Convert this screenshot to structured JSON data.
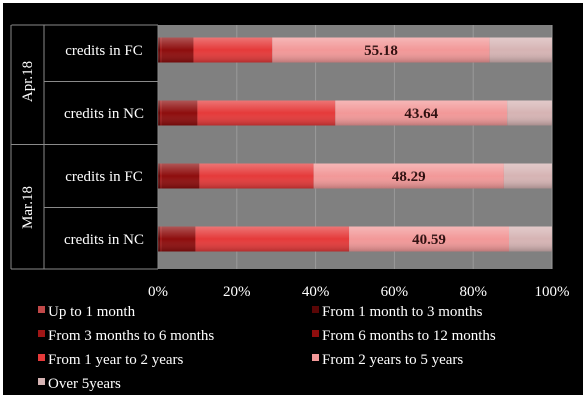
{
  "chart_data": {
    "type": "bar",
    "orientation": "horizontal",
    "stacked": "percent",
    "title": "",
    "xlabel": "",
    "ylabel": "",
    "xlim": [
      0,
      100
    ],
    "x_ticks": [
      "0%",
      "20%",
      "40%",
      "60%",
      "80%",
      "100%"
    ],
    "grid": true,
    "legend_position": "bottom",
    "groups": [
      {
        "label": "Apr.18",
        "categories": [
          "credits in FC",
          "credits in NC"
        ]
      },
      {
        "label": "Mar.18",
        "categories": [
          "credits in FC",
          "credits in NC"
        ]
      }
    ],
    "rows": [
      {
        "group": "Apr.18",
        "category": "credits in FC",
        "data_label": "55.18"
      },
      {
        "group": "Apr.18",
        "category": "credits in NC",
        "data_label": "43.64"
      },
      {
        "group": "Mar.18",
        "category": "credits in FC",
        "data_label": "48.29"
      },
      {
        "group": "Mar.18",
        "category": "credits in NC",
        "data_label": "40.59"
      }
    ],
    "label_series_index": 6,
    "series": [
      {
        "name": "Up to 1 month",
        "values": [
          0.2,
          0.2,
          0.2,
          0.2
        ]
      },
      {
        "name": "From 1 month to 3 months",
        "values": [
          0.3,
          0.3,
          0.3,
          0.3
        ]
      },
      {
        "name": "From 3 months to 6 months",
        "values": [
          0.5,
          0.5,
          0.5,
          0.5
        ]
      },
      {
        "name": "From 6 months to 12 months",
        "values": [
          8.0,
          9.0,
          9.5,
          8.5
        ]
      },
      {
        "name": "From 1 year to 2 years",
        "values": [
          20.0,
          35.0,
          29.0,
          39.0
        ]
      },
      {
        "name": "From 2 years to 5 years",
        "values": [
          55.18,
          43.64,
          48.29,
          40.59
        ]
      },
      {
        "name": "Over 5years",
        "values": [
          15.82,
          11.36,
          12.21,
          10.91
        ]
      }
    ],
    "colors": {
      "plot_background": "#808080",
      "figure_background": "#000000",
      "text": "#ffffff",
      "series": [
        "#7a0c0c",
        "#5a0606",
        "#a01616",
        "#8e0d0d",
        "#e53a3a",
        "#f29898",
        "#d6b4b4"
      ],
      "legend_markers": [
        "#c04848",
        "#5a0606",
        "#a01616",
        "#8e0d0d",
        "#e53a3a",
        "#f29898",
        "#d6b4b4"
      ]
    }
  }
}
